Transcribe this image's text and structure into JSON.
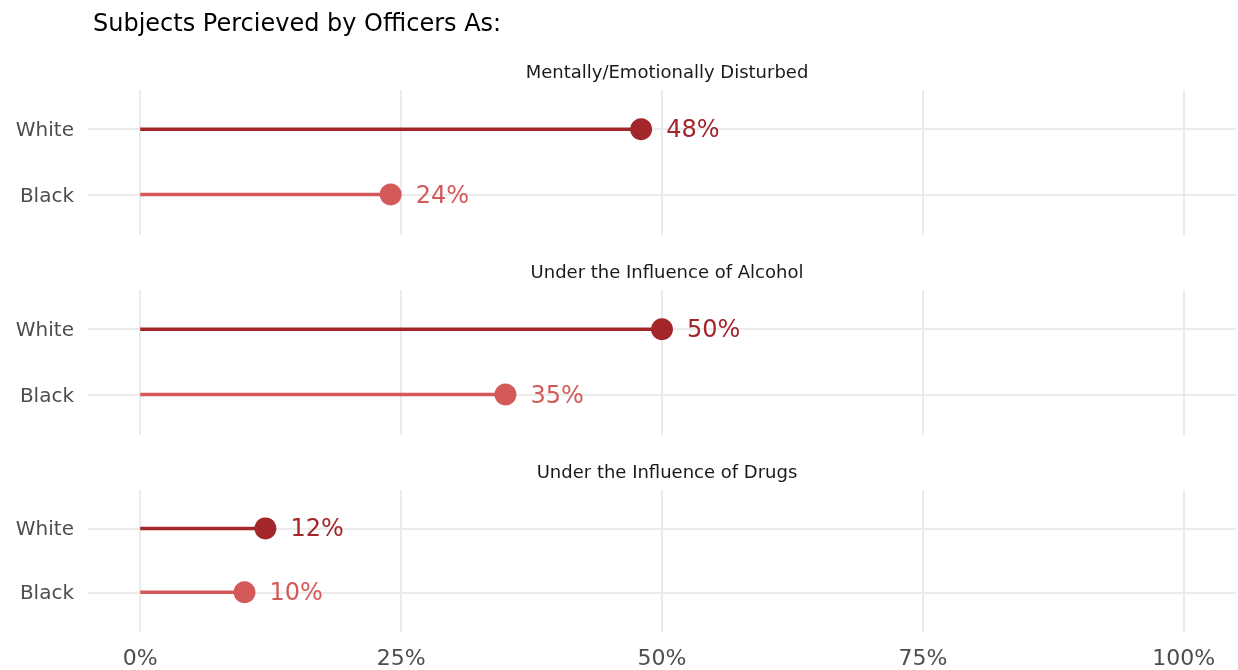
{
  "chart_data": [
    {
      "type": "lollipop",
      "orientation": "horizontal",
      "title": "Subjects Percieved by Officers As:",
      "subtitle": "Mentally/Emotionally Disturbed",
      "categories": [
        "White",
        "Black"
      ],
      "values": [
        48,
        24
      ],
      "value_labels": [
        "48%",
        "24%"
      ],
      "colors": [
        "#a3262a",
        "#d45a5a"
      ],
      "xlim": [
        -5,
        105
      ],
      "xticks": [
        0,
        25,
        50,
        75,
        100
      ],
      "tick_labels": "y",
      "grid": true,
      "marker": "circle",
      "line_style": "solid"
    },
    {
      "type": "lollipop",
      "orientation": "horizontal",
      "title": "Under the Influence of Alcohol",
      "categories": [
        "White",
        "Black"
      ],
      "values": [
        50,
        35
      ],
      "value_labels": [
        "50%",
        "35%"
      ],
      "colors": [
        "#a3262a",
        "#d45a5a"
      ],
      "xlim": [
        -5,
        105
      ],
      "xticks": [
        0,
        25,
        50,
        75,
        100
      ],
      "tick_labels": "y",
      "grid": true,
      "marker": "circle",
      "line_style": "solid"
    },
    {
      "type": "lollipop",
      "orientation": "horizontal",
      "title": "Under the Influence of Drugs",
      "categories": [
        "White",
        "Black"
      ],
      "values": [
        12,
        10
      ],
      "value_labels": [
        "12%",
        "10%"
      ],
      "colors": [
        "#a3262a",
        "#d45a5a"
      ],
      "xlim": [
        -5,
        105
      ],
      "xticks": [
        {
          "value": 0,
          "label": "0%"
        },
        {
          "value": 25,
          "label": "25%"
        },
        {
          "value": 50,
          "label": "50%"
        },
        {
          "value": 75,
          "label": "75%"
        },
        {
          "value": 100,
          "label": "100%"
        }
      ],
      "grid": true,
      "marker": "circle",
      "line_style": "solid"
    }
  ]
}
